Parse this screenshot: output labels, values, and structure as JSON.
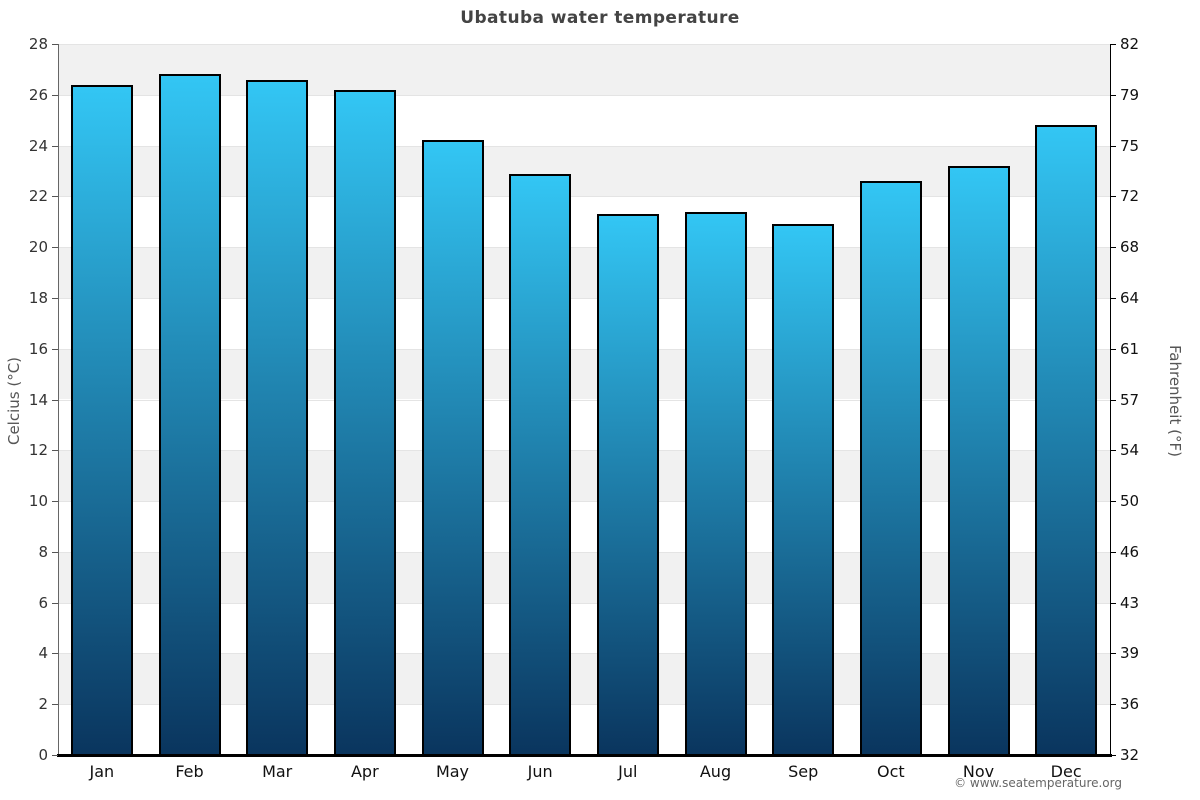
{
  "chart_data": {
    "type": "bar",
    "title": "Ubatuba water temperature",
    "categories": [
      "Jan",
      "Feb",
      "Mar",
      "Apr",
      "May",
      "Jun",
      "Jul",
      "Aug",
      "Sep",
      "Oct",
      "Nov",
      "Dec"
    ],
    "values": [
      26.4,
      26.8,
      26.6,
      26.2,
      24.2,
      22.9,
      21.3,
      21.4,
      20.9,
      22.6,
      23.2,
      24.8
    ],
    "ylabel_left": "Celcius (°C)",
    "ylabel_right": "Fahrenheit (°F)",
    "ylim": [
      0,
      28
    ],
    "yticks_left": [
      0,
      2,
      4,
      6,
      8,
      10,
      12,
      14,
      16,
      18,
      20,
      22,
      24,
      26,
      28
    ],
    "yticks_right": [
      32,
      36,
      39,
      43,
      46,
      50,
      54,
      57,
      61,
      64,
      68,
      72,
      75,
      79,
      82
    ],
    "legend": "none",
    "grid": "horizontal",
    "footer": "© www.seatemperature.org",
    "colors": {
      "bar_top": "#33c6f4",
      "bar_bottom": "#0a355e",
      "bar_border": "#000000",
      "band_gray": "#f1f1f1",
      "gridline": "#e4e4e4",
      "title": "#444444"
    }
  }
}
